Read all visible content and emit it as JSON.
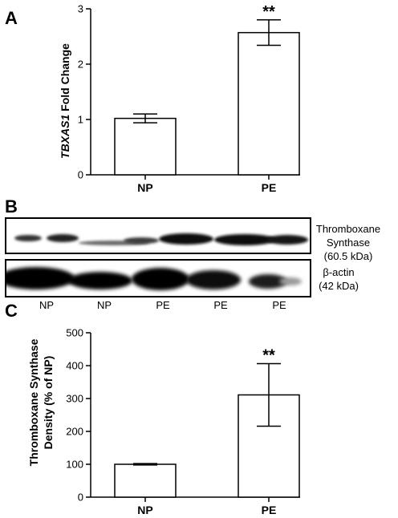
{
  "panels": {
    "a": {
      "letter": "A"
    },
    "b": {
      "letter": "B"
    },
    "c": {
      "letter": "C"
    }
  },
  "chart_data": [
    {
      "type": "bar",
      "panel": "A",
      "categories": [
        "NP",
        "PE"
      ],
      "values": [
        1.02,
        2.57
      ],
      "error": [
        0.08,
        0.23
      ],
      "significance": [
        "",
        "**"
      ],
      "ylabel_italic": "TBXAS1",
      "ylabel_rest": " Fold Change",
      "ylim": [
        0,
        3
      ],
      "yticks": [
        0,
        1,
        2,
        3
      ],
      "ytick_labels": [
        "0",
        "1",
        "2",
        "3"
      ],
      "grid": false
    },
    {
      "type": "bar",
      "panel": "C",
      "categories": [
        "NP",
        "PE"
      ],
      "values": [
        100,
        311
      ],
      "error": [
        2,
        95
      ],
      "significance": [
        "",
        "**"
      ],
      "ylabel_line1": "Thromboxane Synthase",
      "ylabel_line2": "Density (% of NP)",
      "ylim": [
        0,
        500
      ],
      "yticks": [
        0,
        100,
        200,
        300,
        400,
        500
      ],
      "ytick_labels": [
        "0",
        "100",
        "200",
        "300",
        "400",
        "500"
      ],
      "grid": false
    }
  ],
  "blot": {
    "top_label_line1": "Thromboxane",
    "top_label_line2": "Synthase",
    "top_label_line3": "(60.5 kDa)",
    "bottom_label_line1": "β-actin",
    "bottom_label_line2": "(42 kDa)",
    "lanes": [
      "NP",
      "NP",
      "PE",
      "PE",
      "PE"
    ]
  }
}
